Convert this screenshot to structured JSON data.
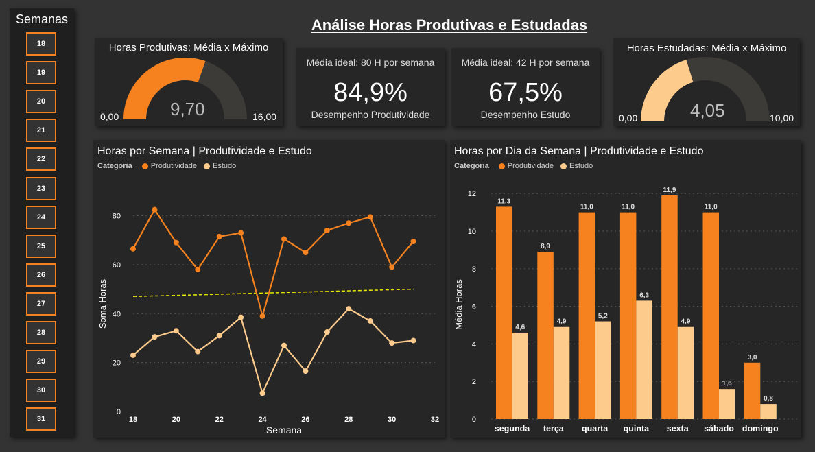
{
  "slicer": {
    "title": "Semanas",
    "weeks": [
      "18",
      "19",
      "20",
      "21",
      "22",
      "23",
      "24",
      "25",
      "26",
      "27",
      "28",
      "29",
      "30",
      "31"
    ]
  },
  "main_title": "Análise Horas Produtivas e Estudadas",
  "gauge_prod": {
    "title": "Horas Produtivas: Média x Máximo",
    "value": 9.7,
    "value_label": "9,70",
    "min_label": "0,00",
    "max_label": "16,00",
    "min": 0,
    "max": 16
  },
  "kpi_prod": {
    "subtitle": "Média ideal: 80 H por semana",
    "value": "84,9%",
    "label": "Desempenho Produtividade"
  },
  "kpi_study": {
    "subtitle": "Média ideal: 42 H por semana",
    "value": "67,5%",
    "label": "Desempenho Estudo"
  },
  "gauge_study": {
    "title": "Horas Estudadas: Média x Máximo",
    "value": 4.05,
    "value_label": "4,05",
    "min_label": "0,00",
    "max_label": "10,00",
    "min": 0,
    "max": 10
  },
  "colors": {
    "produtividade": "#f5821f",
    "estudo": "#fdcb8c",
    "trend": "#e8e800",
    "gauge_bg": "#3d3b38"
  },
  "chart_data": [
    {
      "type": "line",
      "title": "Horas por Semana | Produtividade e Estudo",
      "legend_title": "Categoria",
      "xlabel": "Semana",
      "ylabel": "Soma Horas",
      "xlim": [
        18,
        32
      ],
      "ylim": [
        0,
        88
      ],
      "xticks": [
        18,
        20,
        22,
        24,
        26,
        28,
        30,
        32
      ],
      "yticks": [
        0,
        20,
        40,
        60,
        80
      ],
      "x": [
        18,
        19,
        20,
        21,
        22,
        23,
        24,
        25,
        26,
        27,
        28,
        29,
        30,
        31
      ],
      "series": [
        {
          "name": "Produtividade",
          "values": [
            66.5,
            82.5,
            69,
            58,
            71.5,
            73,
            39,
            70.5,
            65,
            74,
            77,
            79.5,
            59,
            69.5
          ]
        },
        {
          "name": "Estudo",
          "values": [
            23,
            30.5,
            33,
            24.5,
            31,
            38.5,
            7.5,
            27,
            16.5,
            32.5,
            42,
            37,
            28,
            29
          ]
        }
      ],
      "trend": {
        "from": [
          18,
          47
        ],
        "to": [
          31,
          50
        ]
      }
    },
    {
      "type": "bar",
      "title": "Horas por Dia da Semana | Produtividade e Estudo",
      "legend_title": "Categoria",
      "xlabel": "",
      "ylabel": "Média Horas",
      "ylim": [
        0,
        12.3
      ],
      "yticks": [
        0,
        2,
        4,
        6,
        8,
        10,
        12
      ],
      "categories": [
        "segunda",
        "terça",
        "quarta",
        "quinta",
        "sexta",
        "sábado",
        "domingo"
      ],
      "series": [
        {
          "name": "Produtividade",
          "values": [
            11.3,
            8.9,
            11.0,
            11.0,
            11.9,
            11.0,
            3.0
          ],
          "labels": [
            "11,3",
            "8,9",
            "11,0",
            "11,0",
            "11,9",
            "11,0",
            "3,0"
          ]
        },
        {
          "name": "Estudo",
          "values": [
            4.6,
            4.9,
            5.2,
            6.3,
            4.9,
            1.6,
            0.8
          ],
          "labels": [
            "4,6",
            "4,9",
            "5,2",
            "6,3",
            "4,9",
            "1,6",
            "0,8"
          ]
        }
      ]
    }
  ]
}
